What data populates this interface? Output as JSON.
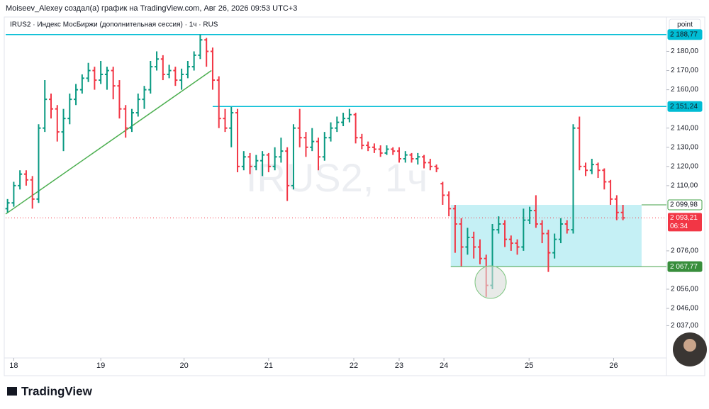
{
  "header": {
    "credit": "Moiseev_Alexey создал(а) график на TradingView.com, Авг 26, 2026 09:53 UTC+3",
    "brand": "TradingView"
  },
  "chart_data": {
    "type": "ohlc",
    "title": "IRUS2 · Индекс МосБиржи (дополнительная сессия) · 1ч · RUS",
    "watermark": "IRUS2, 1ч",
    "scale_mode": "point",
    "up_color": "#089981",
    "down_color": "#f23645",
    "xlim": [
      -0.3,
      106
    ],
    "ylim": [
      2022,
      2192
    ],
    "xticks": [
      {
        "value": 1,
        "label": "18"
      },
      {
        "value": 15,
        "label": "19"
      },
      {
        "value": 28.4,
        "label": "20"
      },
      {
        "value": 42,
        "label": "21"
      },
      {
        "value": 55.7,
        "label": "22"
      },
      {
        "value": 63,
        "label": "23"
      },
      {
        "value": 70.2,
        "label": "24"
      },
      {
        "value": 83.9,
        "label": "25"
      },
      {
        "value": 97.5,
        "label": "26"
      }
    ],
    "yticks": [
      {
        "value": 2037,
        "label": "2 037,00"
      },
      {
        "value": 2046,
        "label": "2 046,00"
      },
      {
        "value": 2056,
        "label": "2 056,00"
      },
      {
        "value": 2076,
        "label": "2 076,00"
      },
      {
        "value": 2110,
        "label": "2 110,00"
      },
      {
        "value": 2120,
        "label": "2 120,00"
      },
      {
        "value": 2130,
        "label": "2 130,00"
      },
      {
        "value": 2140,
        "label": "2 140,00"
      },
      {
        "value": 2160,
        "label": "2 160,00"
      },
      {
        "value": 2170,
        "label": "2 170,00"
      },
      {
        "value": 2180,
        "label": "2 180,00"
      }
    ],
    "open": [
      2098,
      2101,
      2110,
      2116,
      2113,
      2103,
      2140,
      2155,
      2150,
      2138,
      2145,
      2155,
      2160,
      2166,
      2170,
      2165,
      2168,
      2170,
      2162,
      2150,
      2140,
      2148,
      2155,
      2160,
      2172,
      2176,
      2168,
      2170,
      2165,
      2168,
      2172,
      2178,
      2186,
      2180,
      2165,
      2145,
      2140,
      2148,
      2120,
      2125,
      2120,
      2123,
      2126,
      2120,
      2125,
      2128,
      2110,
      2140,
      2135,
      2130,
      2133,
      2125,
      2135,
      2140,
      2143,
      2145,
      2147,
      2135,
      2131,
      2130,
      2129,
      2127,
      2129,
      2128,
      2124,
      2126,
      2124,
      2125,
      2122,
      2120,
      2111,
      2105,
      2098,
      2090,
      2078,
      2083,
      2078,
      2072,
      2058,
      2087,
      2090,
      2082,
      2080,
      2078,
      2092,
      2097,
      2090,
      2085,
      2075,
      2082,
      2090,
      2087,
      2140,
      2120,
      2118,
      2121,
      2118,
      2112,
      2103,
      2096
    ],
    "high": [
      2103,
      2112,
      2118,
      2118,
      2115,
      2142,
      2165,
      2158,
      2152,
      2150,
      2158,
      2163,
      2168,
      2174,
      2172,
      2175,
      2172,
      2172,
      2165,
      2152,
      2150,
      2158,
      2162,
      2175,
      2180,
      2178,
      2173,
      2172,
      2171,
      2175,
      2180,
      2188.77,
      2187,
      2182,
      2167,
      2150,
      2151,
      2150,
      2128,
      2127,
      2126,
      2128,
      2127,
      2130,
      2135,
      2130,
      2142,
      2150,
      2138,
      2140,
      2135,
      2138,
      2143,
      2146,
      2148,
      2150,
      2148,
      2137,
      2133,
      2132,
      2131,
      2131,
      2130,
      2130,
      2128,
      2127,
      2127,
      2126,
      2124,
      2121,
      2112,
      2107,
      2100,
      2093,
      2088,
      2086,
      2082,
      2074,
      2090,
      2094,
      2092,
      2084,
      2082,
      2098,
      2099,
      2105,
      2092,
      2087,
      2085,
      2093,
      2092,
      2142,
      2146,
      2122,
      2124,
      2122,
      2119,
      2113,
      2105,
      2099.98
    ],
    "low": [
      2096,
      2099,
      2108,
      2110,
      2098,
      2101,
      2138,
      2145,
      2133,
      2128,
      2142,
      2152,
      2158,
      2164,
      2160,
      2163,
      2160,
      2155,
      2145,
      2135,
      2138,
      2146,
      2150,
      2158,
      2170,
      2165,
      2166,
      2162,
      2160,
      2166,
      2170,
      2176,
      2172,
      2160,
      2140,
      2138,
      2130,
      2117,
      2118,
      2116,
      2118,
      2115,
      2117,
      2118,
      2122,
      2102,
      2108,
      2130,
      2125,
      2128,
      2118,
      2123,
      2133,
      2138,
      2141,
      2143,
      2132,
      2129,
      2128,
      2127,
      2125,
      2126,
      2126,
      2122,
      2122,
      2122,
      2121,
      2119,
      2118,
      2117,
      2100,
      2094,
      2075,
      2068,
      2074,
      2072,
      2069,
      2052,
      2056,
      2085,
      2078,
      2076,
      2074,
      2076,
      2090,
      2088,
      2080,
      2065,
      2072,
      2080,
      2085,
      2085,
      2118,
      2115,
      2116,
      2114,
      2108,
      2100,
      2092,
      2092
    ],
    "close": [
      2101,
      2110,
      2116,
      2113,
      2103,
      2140,
      2155,
      2150,
      2138,
      2145,
      2155,
      2160,
      2166,
      2170,
      2165,
      2168,
      2170,
      2162,
      2150,
      2140,
      2148,
      2155,
      2160,
      2172,
      2176,
      2168,
      2170,
      2165,
      2168,
      2172,
      2178,
      2186,
      2180,
      2165,
      2145,
      2140,
      2148,
      2120,
      2125,
      2120,
      2123,
      2126,
      2120,
      2125,
      2128,
      2110,
      2140,
      2135,
      2130,
      2133,
      2125,
      2135,
      2140,
      2143,
      2145,
      2147,
      2135,
      2131,
      2130,
      2129,
      2127,
      2129,
      2128,
      2124,
      2126,
      2124,
      2125,
      2122,
      2120,
      2119,
      2105,
      2098,
      2090,
      2078,
      2083,
      2078,
      2072,
      2058,
      2087,
      2090,
      2082,
      2080,
      2078,
      2092,
      2097,
      2090,
      2085,
      2075,
      2082,
      2090,
      2087,
      2140,
      2120,
      2118,
      2121,
      2118,
      2112,
      2103,
      2096,
      2093.21
    ],
    "levels": [
      {
        "value": 2188.77,
        "label": "2 188,77",
        "x0": -0.3,
        "color": "#00bcd4"
      },
      {
        "value": 2151.24,
        "label": "2 151,24",
        "x0": 33,
        "color": "#00bcd4"
      }
    ],
    "zone": {
      "x": [
        71.3,
        102
      ],
      "y": [
        {
          "value": 2067.77,
          "label": "2 067,77"
        },
        {
          "value": 2099.98,
          "label": "2 099,98"
        }
      ],
      "fill": "#b2ebf2",
      "edge_color": "#43a047"
    },
    "trendline": {
      "x": [
        -0.3,
        32.8
      ],
      "y": [
        2095.2,
        2170
      ],
      "color": "#4caf50"
    },
    "last": {
      "value": 2093.21,
      "label": "2 093,21",
      "countdown": "06:34"
    }
  }
}
